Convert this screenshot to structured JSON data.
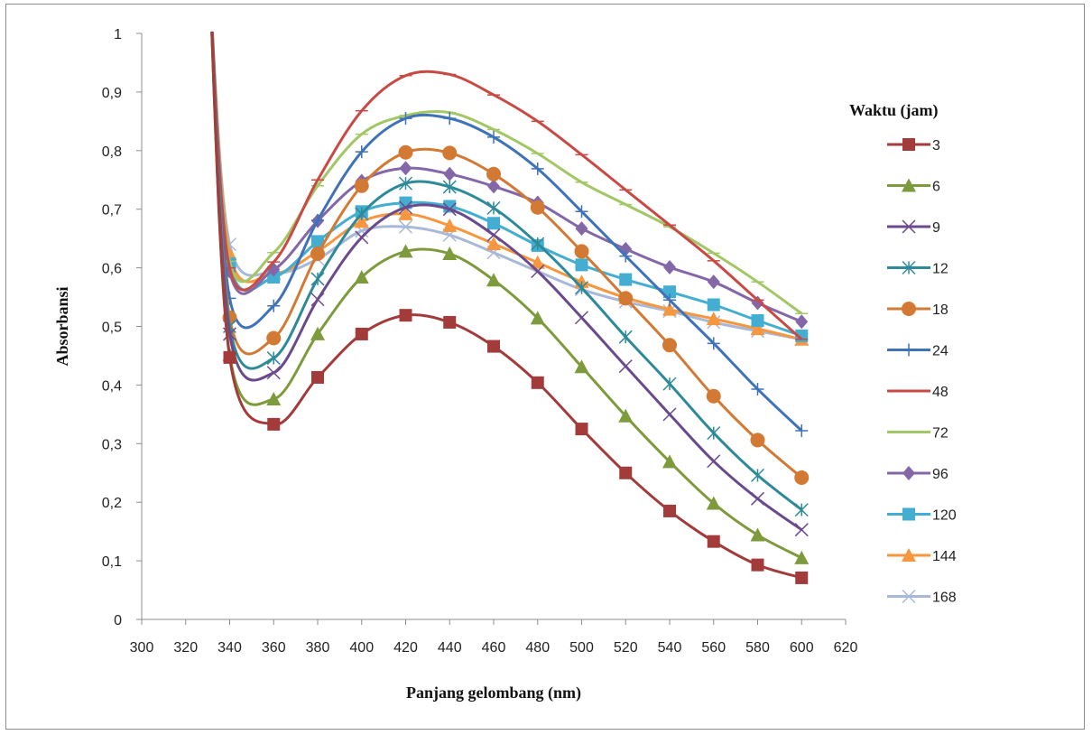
{
  "chart_data": {
    "type": "line",
    "xlabel": "Panjang gelombang (nm)",
    "ylabel": "Absorbansi",
    "xlim": [
      300,
      620
    ],
    "ylim": [
      0,
      1
    ],
    "x_ticks": [
      "300",
      "320",
      "340",
      "360",
      "380",
      "400",
      "420",
      "440",
      "460",
      "480",
      "500",
      "520",
      "540",
      "560",
      "580",
      "600",
      "620"
    ],
    "y_ticks": [
      "0",
      "0,1",
      "0,2",
      "0,3",
      "0,4",
      "0,5",
      "0,6",
      "0,7",
      "0,8",
      "0,9",
      "1"
    ],
    "grid": false,
    "legend_title": "Waktu  (jam)",
    "legend_position": "right",
    "x": [
      340,
      360,
      380,
      400,
      420,
      440,
      460,
      480,
      500,
      520,
      540,
      560,
      580,
      600
    ],
    "series": [
      {
        "name": "3",
        "color": "#a33b3b",
        "marker": "square",
        "values": [
          0.447,
          0.333,
          0.413,
          0.487,
          0.519,
          0.507,
          0.466,
          0.404,
          0.325,
          0.25,
          0.185,
          0.133,
          0.093,
          0.071
        ]
      },
      {
        "name": "6",
        "color": "#7d9b3c",
        "marker": "triangle",
        "values": [
          0.452,
          0.376,
          0.487,
          0.584,
          0.628,
          0.624,
          0.579,
          0.514,
          0.431,
          0.347,
          0.269,
          0.198,
          0.144,
          0.105
        ]
      },
      {
        "name": "9",
        "color": "#6a4a8c",
        "marker": "x",
        "values": [
          0.487,
          0.421,
          0.546,
          0.652,
          0.703,
          0.7,
          0.656,
          0.594,
          0.515,
          0.432,
          0.35,
          0.27,
          0.206,
          0.153
        ]
      },
      {
        "name": "12",
        "color": "#2e8a99",
        "marker": "asterisk",
        "values": [
          0.5,
          0.446,
          0.581,
          0.692,
          0.744,
          0.738,
          0.702,
          0.641,
          0.566,
          0.482,
          0.402,
          0.318,
          0.246,
          0.187
        ]
      },
      {
        "name": "18",
        "color": "#d27a34",
        "marker": "circle",
        "values": [
          0.515,
          0.48,
          0.624,
          0.74,
          0.797,
          0.796,
          0.76,
          0.703,
          0.628,
          0.548,
          0.468,
          0.381,
          0.306,
          0.242
        ]
      },
      {
        "name": "24",
        "color": "#3f72b8",
        "marker": "plus",
        "values": [
          0.548,
          0.535,
          0.681,
          0.798,
          0.855,
          0.855,
          0.823,
          0.769,
          0.696,
          0.62,
          0.545,
          0.471,
          0.393,
          0.322
        ]
      },
      {
        "name": "48",
        "color": "#c84a44",
        "marker": "dash",
        "values": [
          0.6,
          0.61,
          0.75,
          0.868,
          0.928,
          0.93,
          0.895,
          0.85,
          0.793,
          0.733,
          0.673,
          0.612,
          0.545,
          0.478
        ]
      },
      {
        "name": "72",
        "color": "#a2c765",
        "marker": "dash",
        "values": [
          0.611,
          0.626,
          0.74,
          0.828,
          0.86,
          0.865,
          0.836,
          0.795,
          0.746,
          0.708,
          0.67,
          0.625,
          0.576,
          0.522
        ]
      },
      {
        "name": "96",
        "color": "#8467a7",
        "marker": "diamond",
        "values": [
          0.594,
          0.597,
          0.68,
          0.748,
          0.77,
          0.76,
          0.739,
          0.711,
          0.667,
          0.632,
          0.601,
          0.576,
          0.54,
          0.508
        ]
      },
      {
        "name": "120",
        "color": "#43aed1",
        "marker": "square",
        "values": [
          0.607,
          0.584,
          0.645,
          0.696,
          0.711,
          0.705,
          0.676,
          0.638,
          0.605,
          0.58,
          0.559,
          0.537,
          0.51,
          0.484
        ]
      },
      {
        "name": "144",
        "color": "#f6963e",
        "marker": "triangle",
        "values": [
          0.624,
          0.59,
          0.628,
          0.679,
          0.692,
          0.672,
          0.641,
          0.609,
          0.576,
          0.549,
          0.529,
          0.513,
          0.496,
          0.478
        ]
      },
      {
        "name": "168",
        "color": "#a7b8d8",
        "marker": "x",
        "values": [
          0.64,
          0.592,
          0.615,
          0.663,
          0.67,
          0.656,
          0.626,
          0.594,
          0.563,
          0.542,
          0.526,
          0.507,
          0.492,
          0.478
        ]
      }
    ]
  }
}
